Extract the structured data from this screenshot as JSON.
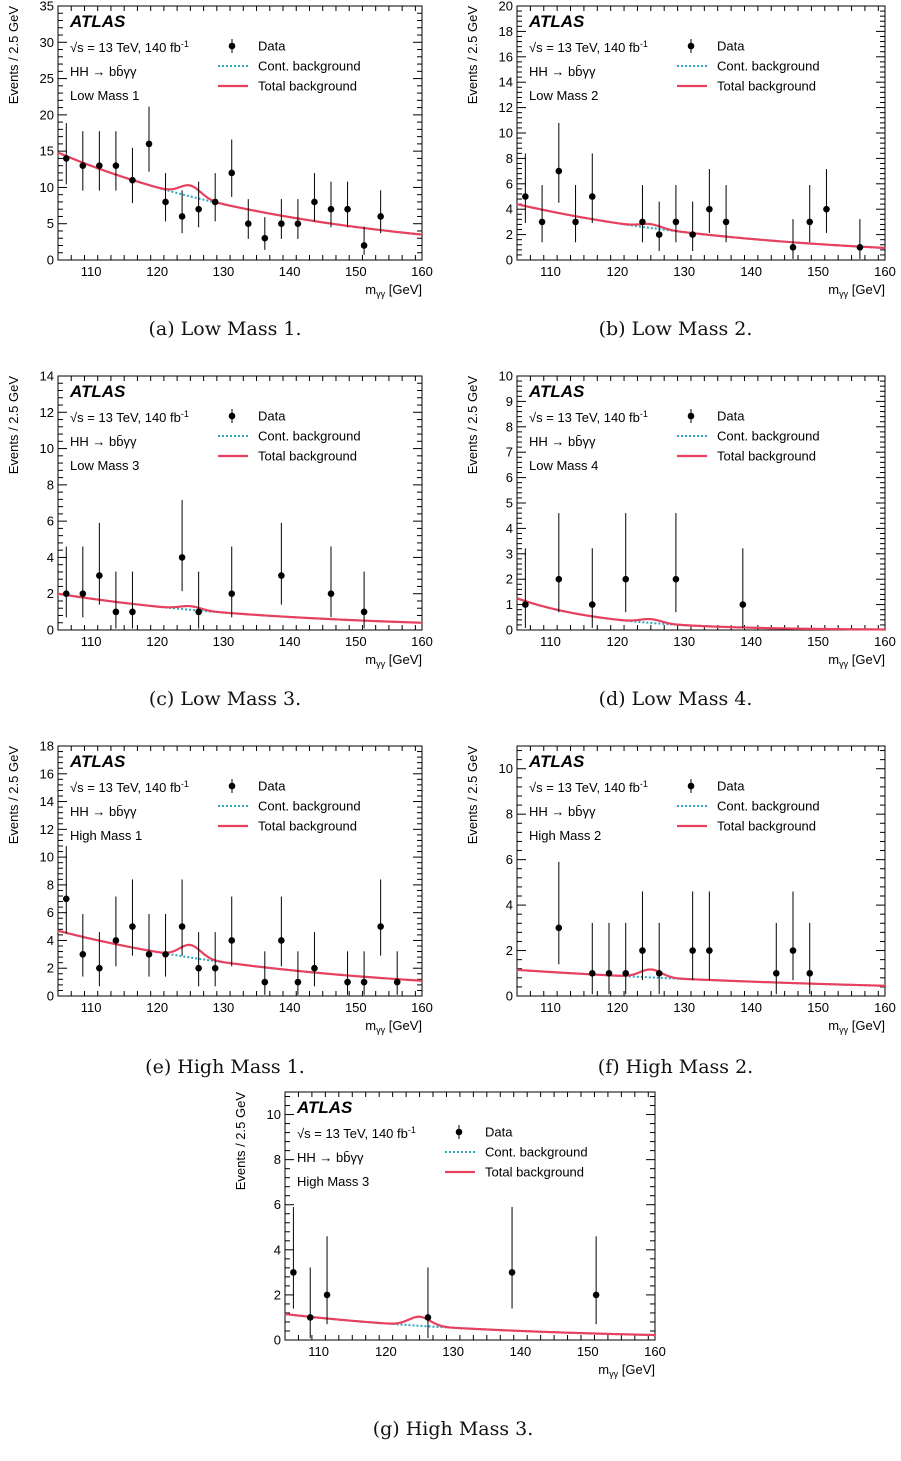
{
  "common": {
    "atlas_label": "ATLAS",
    "energy_label": "√s = 13 TeV, 140 fb",
    "lumi_exponent": "-1",
    "process_label": "HH → bb̄γγ",
    "legend": {
      "data": "Data",
      "cont": "Cont. background",
      "total": "Total background"
    },
    "ylabel": "Events / 2.5 GeV",
    "xlabel_main": "m",
    "xlabel_sub": "γγ",
    "xlabel_unit": " [GeV]",
    "colors": {
      "data": "#000000",
      "cont": "#29a8c0",
      "total": "#e8405e"
    }
  },
  "chart_data": [
    {
      "type": "scatter",
      "caption": "(a) Low Mass 1.",
      "category": "Low Mass 1",
      "xlim": [
        105,
        160
      ],
      "ylim": [
        0,
        35
      ],
      "yticks": [
        0,
        5,
        10,
        15,
        20,
        25,
        30,
        35
      ],
      "xticks": [
        110,
        120,
        130,
        140,
        150,
        160
      ],
      "data": {
        "x": [
          106.25,
          108.75,
          111.25,
          113.75,
          116.25,
          118.75,
          121.25,
          123.75,
          126.25,
          128.75,
          131.25,
          133.75,
          136.25,
          138.75,
          141.25,
          143.75,
          146.25,
          148.75,
          151.25,
          153.75
        ],
        "y": [
          14,
          13,
          13,
          13,
          11,
          16,
          8,
          6,
          7,
          8,
          12,
          5,
          3,
          5,
          5,
          8,
          7,
          7,
          2,
          6
        ]
      },
      "background": {
        "start": 14.8,
        "end": 3.5,
        "bump": 1.5
      }
    },
    {
      "type": "scatter",
      "caption": "(b) Low Mass 2.",
      "category": "Low Mass 2",
      "xlim": [
        105,
        160
      ],
      "ylim": [
        0,
        20
      ],
      "yticks": [
        0,
        2,
        4,
        6,
        8,
        10,
        12,
        14,
        16,
        18,
        20
      ],
      "xticks": [
        110,
        120,
        130,
        140,
        150,
        160
      ],
      "data": {
        "x": [
          106.25,
          108.75,
          111.25,
          113.75,
          116.25,
          123.75,
          126.25,
          128.75,
          131.25,
          133.75,
          136.25,
          146.25,
          148.75,
          151.25,
          156.25
        ],
        "y": [
          5,
          3,
          7,
          3,
          5,
          3,
          2,
          3,
          2,
          4,
          3,
          1,
          3,
          4,
          1
        ]
      },
      "background": {
        "start": 4.4,
        "end": 0.95,
        "bump": 0.3
      }
    },
    {
      "type": "scatter",
      "caption": "(c) Low Mass 3.",
      "category": "Low Mass 3",
      "xlim": [
        105,
        160
      ],
      "ylim": [
        0,
        14
      ],
      "yticks": [
        0,
        2,
        4,
        6,
        8,
        10,
        12,
        14
      ],
      "xticks": [
        110,
        120,
        130,
        140,
        150,
        160
      ],
      "data": {
        "x": [
          106.25,
          108.75,
          111.25,
          113.75,
          116.25,
          123.75,
          126.25,
          131.25,
          138.75,
          146.25,
          151.25
        ],
        "y": [
          2,
          2,
          3,
          1,
          1,
          4,
          1,
          2,
          3,
          2,
          1
        ]
      },
      "background": {
        "start": 2.0,
        "end": 0.4,
        "bump": 0.2
      }
    },
    {
      "type": "scatter",
      "caption": "(d) Low Mass 4.",
      "category": "Low Mass 4",
      "xlim": [
        105,
        160
      ],
      "ylim": [
        0,
        10
      ],
      "yticks": [
        0,
        1,
        2,
        3,
        4,
        5,
        6,
        7,
        8,
        9,
        10
      ],
      "xticks": [
        110,
        120,
        130,
        140,
        150,
        160
      ],
      "data": {
        "x": [
          106.25,
          111.25,
          116.25,
          121.25,
          128.75,
          138.75
        ],
        "y": [
          1,
          2,
          1,
          2,
          2,
          1
        ]
      },
      "background": {
        "start": 1.25,
        "end": 0.02,
        "bump": 0.15
      }
    },
    {
      "type": "scatter",
      "caption": "(e) High Mass 1.",
      "category": "High Mass 1",
      "xlim": [
        105,
        160
      ],
      "ylim": [
        0,
        18
      ],
      "yticks": [
        0,
        2,
        4,
        6,
        8,
        10,
        12,
        14,
        16,
        18
      ],
      "xticks": [
        110,
        120,
        130,
        140,
        150,
        160
      ],
      "data": {
        "x": [
          106.25,
          108.75,
          111.25,
          113.75,
          116.25,
          118.75,
          121.25,
          123.75,
          126.25,
          128.75,
          131.25,
          136.25,
          138.75,
          141.25,
          143.75,
          148.75,
          151.25,
          153.75,
          156.25
        ],
        "y": [
          7,
          3,
          2,
          4,
          5,
          3,
          3,
          5,
          2,
          2,
          4,
          1,
          4,
          1,
          2,
          1,
          1,
          5,
          1
        ]
      },
      "background": {
        "start": 4.7,
        "end": 1.1,
        "bump": 0.9
      }
    },
    {
      "type": "scatter",
      "caption": "(f) High Mass 2.",
      "category": "High Mass 2",
      "xlim": [
        105,
        160
      ],
      "ylim": [
        0,
        11
      ],
      "yticks": [
        0,
        2,
        4,
        6,
        8,
        10
      ],
      "xticks": [
        110,
        120,
        130,
        140,
        150,
        160
      ],
      "data": {
        "x": [
          111.25,
          116.25,
          118.75,
          121.25,
          123.75,
          126.25,
          131.25,
          133.75,
          143.75,
          146.25,
          148.75
        ],
        "y": [
          3,
          1,
          1,
          1,
          2,
          1,
          2,
          2,
          1,
          2,
          1
        ]
      },
      "background": {
        "start": 1.15,
        "end": 0.45,
        "bump": 0.35
      }
    },
    {
      "type": "scatter",
      "caption": "(g) High Mass 3.",
      "category": "High Mass 3",
      "xlim": [
        105,
        160
      ],
      "ylim": [
        0,
        11
      ],
      "yticks": [
        0,
        2,
        4,
        6,
        8,
        10
      ],
      "xticks": [
        110,
        120,
        130,
        140,
        150,
        160
      ],
      "data": {
        "x": [
          106.25,
          108.75,
          111.25,
          126.25,
          138.75,
          151.25
        ],
        "y": [
          3,
          1,
          2,
          1,
          3,
          2
        ]
      },
      "background": {
        "start": 1.15,
        "end": 0.22,
        "bump": 0.4
      }
    }
  ]
}
